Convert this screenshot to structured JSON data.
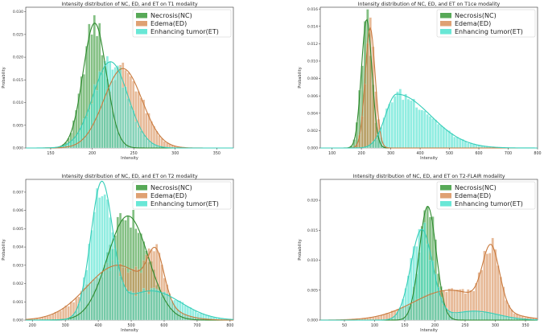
{
  "colors": {
    "nc": "#3a9a3a",
    "ed": "#d9915a",
    "et": "#4fe3cf",
    "nc_line": "#2f8a2f",
    "ed_line": "#c97a3e",
    "et_line": "#35cdb8"
  },
  "chart_data": [
    {
      "type": "histogram",
      "title": "Intensity distribution of NC, ED, and ET on  T1 modality",
      "xlabel": "Intensity",
      "ylabel": "Probability",
      "xlim": [
        120,
        370
      ],
      "ylim": [
        0,
        0.031
      ],
      "xticks": [
        150,
        200,
        250,
        300,
        350
      ],
      "yticks": [
        0.0,
        0.005,
        0.01,
        0.015,
        0.02,
        0.025,
        0.03
      ],
      "ytick_labels": [
        "0.000",
        "0.005",
        "0.010",
        "0.015",
        "0.020",
        "0.025",
        "0.030"
      ],
      "legend_position": "top-right",
      "series": [
        {
          "name": "Necrosis(NC)",
          "color": "#3a9a3a",
          "mean": 203,
          "sd": 14,
          "peak": 0.0275
        },
        {
          "name": "Edema(ED)",
          "color": "#d9915a",
          "mean": 237,
          "sd": 23,
          "peak": 0.0175
        },
        {
          "name": "Enhancing tumor(ET)",
          "color": "#4fe3cf",
          "mean": 222,
          "sd": 21,
          "peak": 0.019
        }
      ]
    },
    {
      "type": "histogram",
      "title": "Intensity distribution of NC, ED, and ET on  T1ce modality",
      "xlabel": "Intensity",
      "ylabel": "Probability",
      "xlim": [
        60,
        800
      ],
      "ylim": [
        0,
        0.0162
      ],
      "xticks": [
        100,
        200,
        300,
        400,
        500,
        600,
        700,
        800
      ],
      "yticks": [
        0.0,
        0.002,
        0.004,
        0.006,
        0.008,
        0.01,
        0.012,
        0.014,
        0.016
      ],
      "ytick_labels": [
        "0.000",
        "0.002",
        "0.004",
        "0.006",
        "0.008",
        "0.010",
        "0.012",
        "0.014",
        "0.016"
      ],
      "legend_position": "top-right",
      "series": [
        {
          "name": "Necrosis(NC)",
          "color": "#3a9a3a",
          "mean": 218,
          "sd": 18,
          "peak": 0.0148
        },
        {
          "name": "Edema(ED)",
          "color": "#d9915a",
          "mean": 230,
          "sd": 17,
          "peak": 0.0138
        },
        {
          "name": "Enhancing tumor(ET)",
          "color": "#4fe3cf",
          "mean": 320,
          "sd": 38,
          "sd_right": 115,
          "peak": 0.0062
        }
      ]
    },
    {
      "type": "histogram",
      "title": "Intensity distribution of NC, ED, and ET on  T2 modality",
      "xlabel": "Intensity",
      "ylabel": "Probability",
      "xlim": [
        180,
        810
      ],
      "ylim": [
        0,
        0.0077
      ],
      "xticks": [
        200,
        300,
        400,
        500,
        600,
        700,
        800
      ],
      "yticks": [
        0.0,
        0.001,
        0.002,
        0.003,
        0.004,
        0.005,
        0.006,
        0.007
      ],
      "ytick_labels": [
        "0.000",
        "0.001",
        "0.002",
        "0.003",
        "0.004",
        "0.005",
        "0.006",
        "0.007"
      ],
      "legend_position": "top-right",
      "series": [
        {
          "name": "Necrosis(NC)",
          "color": "#3a9a3a",
          "mean": 490,
          "sd": 62,
          "peak": 0.0057
        },
        {
          "name": "Edema(ED)",
          "color": "#d9915a",
          "mean": 460,
          "sd": 95,
          "peak": 0.003,
          "bump": {
            "mean": 575,
            "sd": 25,
            "peak": 0.0025
          }
        },
        {
          "name": "Enhancing tumor(ET)",
          "color": "#4fe3cf",
          "mean": 410,
          "sd": 33,
          "peak": 0.0072,
          "bump": {
            "mean": 560,
            "sd": 90,
            "peak": 0.0016
          }
        }
      ]
    },
    {
      "type": "histogram",
      "title": "Intensity distribution of NC, ED, and ET on  T2-FLAIR modality",
      "xlabel": "Intensity",
      "ylabel": "Probability",
      "xlim": [
        10,
        370
      ],
      "ylim": [
        0,
        0.0235
      ],
      "xticks": [
        50,
        100,
        150,
        200,
        250,
        300,
        350
      ],
      "yticks": [
        0.0,
        0.005,
        0.01,
        0.015,
        0.02
      ],
      "ytick_labels": [
        "0.000",
        "0.005",
        "0.010",
        "0.015",
        "0.020"
      ],
      "legend_position": "top-right",
      "series": [
        {
          "name": "Necrosis(NC)",
          "color": "#3a9a3a",
          "mean": 188,
          "sd": 14,
          "peak": 0.019
        },
        {
          "name": "Edema(ED)",
          "color": "#d9915a",
          "mean": 225,
          "sd": 60,
          "peak": 0.005,
          "bump": {
            "mean": 293,
            "sd": 14,
            "peak": 0.01
          }
        },
        {
          "name": "Enhancing tumor(ET)",
          "color": "#4fe3cf",
          "mean": 178,
          "sd": 18,
          "peak": 0.015,
          "bump": {
            "mean": 265,
            "sd": 40,
            "peak": 0.0015
          }
        }
      ]
    }
  ]
}
